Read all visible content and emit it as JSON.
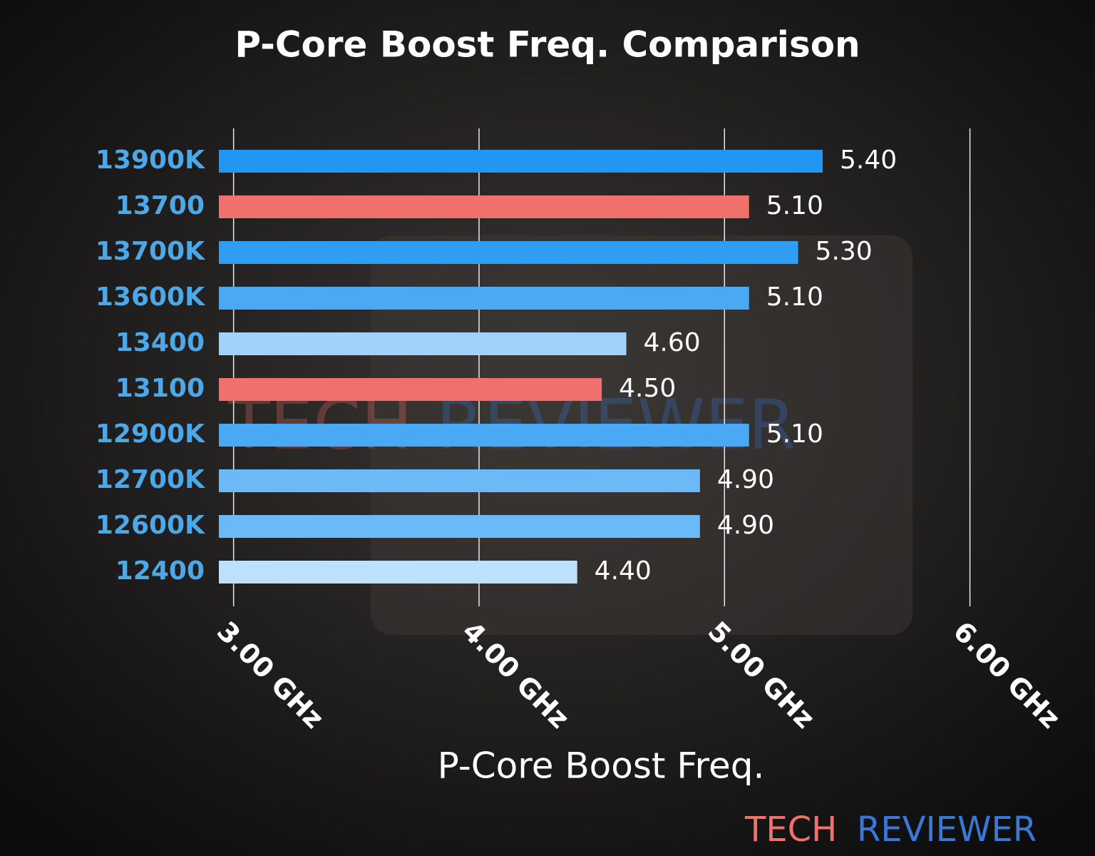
{
  "chart_data": {
    "type": "barh",
    "title": "P-Core Boost Freq. Comparison",
    "x_label": "P-Core Boost Freq.",
    "categories": [
      "13900K",
      "13700",
      "13700K",
      "13600K",
      "13400",
      "13100",
      "12900K",
      "12700K",
      "12600K",
      "12400"
    ],
    "values": [
      5.4,
      5.1,
      5.3,
      5.1,
      4.6,
      4.5,
      5.1,
      4.9,
      4.9,
      4.4
    ],
    "value_labels": [
      "5.40",
      "5.10",
      "5.30",
      "5.10",
      "4.60",
      "4.50",
      "5.10",
      "4.90",
      "4.90",
      "4.40"
    ],
    "colors": [
      "#2196f3",
      "#f0706b",
      "#2e9df2",
      "#4aa9f4",
      "#a2d2fa",
      "#f0706b",
      "#4aa9f4",
      "#6bb9f6",
      "#6bb9f6",
      "#bde1fc"
    ],
    "xlim": [
      2.94,
      6.1
    ],
    "xticks": [
      {
        "value": 3,
        "label": "3.00 GHz"
      },
      {
        "value": 4,
        "label": "4.00 GHz"
      },
      {
        "value": 5,
        "label": "5.00 GHz"
      },
      {
        "value": 6,
        "label": "6.00 GHz"
      }
    ],
    "grid": true,
    "brand": [
      "TECH",
      "REVIEWER"
    ]
  }
}
